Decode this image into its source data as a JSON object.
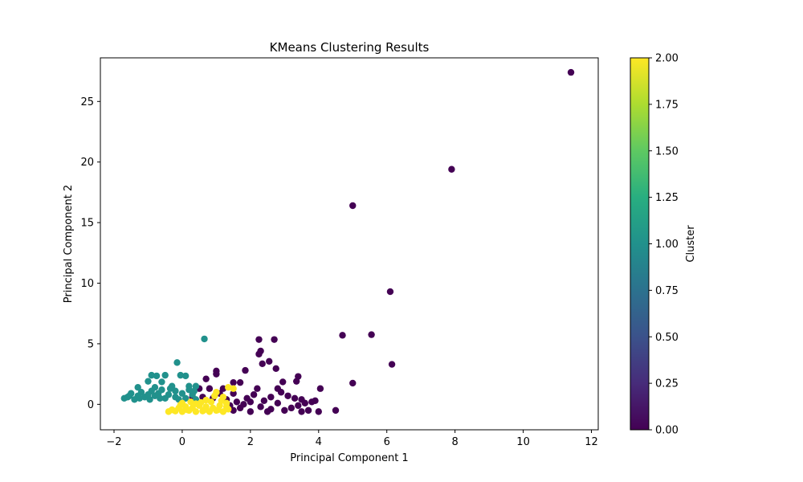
{
  "chart_data": {
    "type": "scatter",
    "title": "KMeans Clustering Results",
    "xlabel": "Principal Component 1",
    "ylabel": "Principal Component 2",
    "xlim": [
      -2.4,
      12.2
    ],
    "ylim": [
      -2.1,
      28.6
    ],
    "xticks": [
      -2,
      0,
      2,
      4,
      6,
      8,
      10,
      12
    ],
    "yticks": [
      0,
      5,
      10,
      15,
      20,
      25
    ],
    "grid": false,
    "colormap": "viridis",
    "colorbar": {
      "label": "Cluster",
      "range": [
        0.0,
        2.0
      ],
      "ticks": [
        "0.00",
        "0.25",
        "0.50",
        "0.75",
        "1.00",
        "1.25",
        "1.50",
        "1.75",
        "2.00"
      ]
    },
    "series": [
      {
        "cluster": 0,
        "color": "#440154",
        "points": [
          [
            11.4,
            27.4
          ],
          [
            7.9,
            19.4
          ],
          [
            5.0,
            16.4
          ],
          [
            6.1,
            9.3
          ],
          [
            4.7,
            5.7
          ],
          [
            5.55,
            5.75
          ],
          [
            6.15,
            3.3
          ],
          [
            5.0,
            1.75
          ],
          [
            2.25,
            5.35
          ],
          [
            2.7,
            5.35
          ],
          [
            2.3,
            4.4
          ],
          [
            2.25,
            4.15
          ],
          [
            2.55,
            3.55
          ],
          [
            2.35,
            3.35
          ],
          [
            2.75,
            2.95
          ],
          [
            1.85,
            2.8
          ],
          [
            3.4,
            2.3
          ],
          [
            3.35,
            1.9
          ],
          [
            2.95,
            1.85
          ],
          [
            4.05,
            1.3
          ],
          [
            0.7,
            2.1
          ],
          [
            1.0,
            2.75
          ],
          [
            1.0,
            2.5
          ],
          [
            1.5,
            1.8
          ],
          [
            1.7,
            1.8
          ],
          [
            0.5,
            1.3
          ],
          [
            0.8,
            1.3
          ],
          [
            1.2,
            1.3
          ],
          [
            2.2,
            1.3
          ],
          [
            2.8,
            1.3
          ],
          [
            2.9,
            1.0
          ],
          [
            3.1,
            0.7
          ],
          [
            3.3,
            0.5
          ],
          [
            3.5,
            0.4
          ],
          [
            3.8,
            0.2
          ],
          [
            3.9,
            0.3
          ],
          [
            4.5,
            -0.5
          ],
          [
            4.0,
            -0.6
          ],
          [
            3.7,
            -0.5
          ],
          [
            3.5,
            -0.6
          ],
          [
            3.2,
            -0.3
          ],
          [
            3.0,
            -0.5
          ],
          [
            2.6,
            -0.4
          ],
          [
            2.3,
            -0.2
          ],
          [
            2.0,
            -0.6
          ],
          [
            1.7,
            -0.3
          ],
          [
            1.5,
            -0.5
          ],
          [
            1.4,
            -0.1
          ],
          [
            1.6,
            0.2
          ],
          [
            1.9,
            0.5
          ],
          [
            2.1,
            0.8
          ],
          [
            2.4,
            0.3
          ],
          [
            2.6,
            0.6
          ],
          [
            2.8,
            0.1
          ],
          [
            1.8,
            0.0
          ],
          [
            2.5,
            -0.6
          ],
          [
            3.4,
            -0.1
          ],
          [
            3.6,
            0.1
          ],
          [
            1.3,
            0.4
          ],
          [
            1.1,
            0.9
          ],
          [
            0.9,
            0.5
          ],
          [
            0.6,
            0.6
          ],
          [
            0.4,
            0.3
          ],
          [
            0.3,
            0.6
          ],
          [
            1.5,
            0.9
          ],
          [
            2.0,
            0.2
          ]
        ]
      },
      {
        "cluster": 1,
        "color": "#21918c",
        "points": [
          [
            0.65,
            5.4
          ],
          [
            -0.15,
            3.45
          ],
          [
            -0.9,
            2.4
          ],
          [
            -0.75,
            2.35
          ],
          [
            -0.5,
            2.4
          ],
          [
            0.1,
            2.35
          ],
          [
            -0.05,
            2.4
          ],
          [
            -1.0,
            1.9
          ],
          [
            -0.6,
            1.85
          ],
          [
            -1.3,
            1.4
          ],
          [
            -0.8,
            1.4
          ],
          [
            -0.3,
            1.5
          ],
          [
            0.2,
            1.5
          ],
          [
            0.4,
            1.5
          ],
          [
            -1.5,
            0.9
          ],
          [
            -1.2,
            1.0
          ],
          [
            -0.9,
            1.1
          ],
          [
            -0.6,
            1.2
          ],
          [
            -0.2,
            1.1
          ],
          [
            0.3,
            0.8
          ],
          [
            -1.7,
            0.5
          ],
          [
            -1.6,
            0.6
          ],
          [
            -1.4,
            0.4
          ],
          [
            -1.1,
            0.6
          ],
          [
            -0.8,
            0.7
          ],
          [
            -0.5,
            0.5
          ],
          [
            -0.2,
            0.6
          ],
          [
            0.1,
            0.5
          ],
          [
            0.4,
            0.4
          ],
          [
            -1.3,
            0.7
          ],
          [
            -1.0,
            0.8
          ],
          [
            -0.7,
            0.9
          ],
          [
            -0.4,
            0.8
          ],
          [
            0.0,
            0.9
          ],
          [
            0.2,
            1.2
          ],
          [
            -1.55,
            0.7
          ],
          [
            -1.25,
            0.5
          ],
          [
            -0.95,
            0.4
          ],
          [
            -0.65,
            0.5
          ],
          [
            -0.35,
            1.3
          ],
          [
            -0.1,
            0.4
          ],
          [
            0.35,
            1.1
          ]
        ]
      },
      {
        "cluster": 2,
        "color": "#fde725",
        "points": [
          [
            -0.4,
            -0.6
          ],
          [
            -0.2,
            -0.55
          ],
          [
            0.0,
            -0.6
          ],
          [
            0.2,
            -0.5
          ],
          [
            0.4,
            -0.6
          ],
          [
            0.6,
            -0.55
          ],
          [
            0.8,
            -0.6
          ],
          [
            1.0,
            -0.5
          ],
          [
            1.2,
            -0.6
          ],
          [
            1.35,
            -0.4
          ],
          [
            -0.1,
            -0.3
          ],
          [
            0.1,
            -0.2
          ],
          [
            0.3,
            -0.3
          ],
          [
            0.5,
            -0.1
          ],
          [
            0.7,
            -0.2
          ],
          [
            0.9,
            -0.3
          ],
          [
            1.1,
            -0.1
          ],
          [
            1.3,
            -0.2
          ],
          [
            0.0,
            0.1
          ],
          [
            0.25,
            0.2
          ],
          [
            0.55,
            0.15
          ],
          [
            0.85,
            0.2
          ],
          [
            1.15,
            0.3
          ],
          [
            1.3,
            0.1
          ],
          [
            -0.05,
            -0.05
          ],
          [
            0.4,
            0.05
          ],
          [
            0.7,
            0.35
          ],
          [
            1.0,
            1.0
          ],
          [
            1.35,
            1.4
          ],
          [
            1.5,
            1.3
          ],
          [
            1.2,
            0.6
          ],
          [
            0.95,
            0.7
          ],
          [
            -0.3,
            -0.45
          ],
          [
            0.15,
            -0.45
          ],
          [
            0.65,
            -0.45
          ],
          [
            1.05,
            -0.45
          ]
        ]
      }
    ]
  }
}
